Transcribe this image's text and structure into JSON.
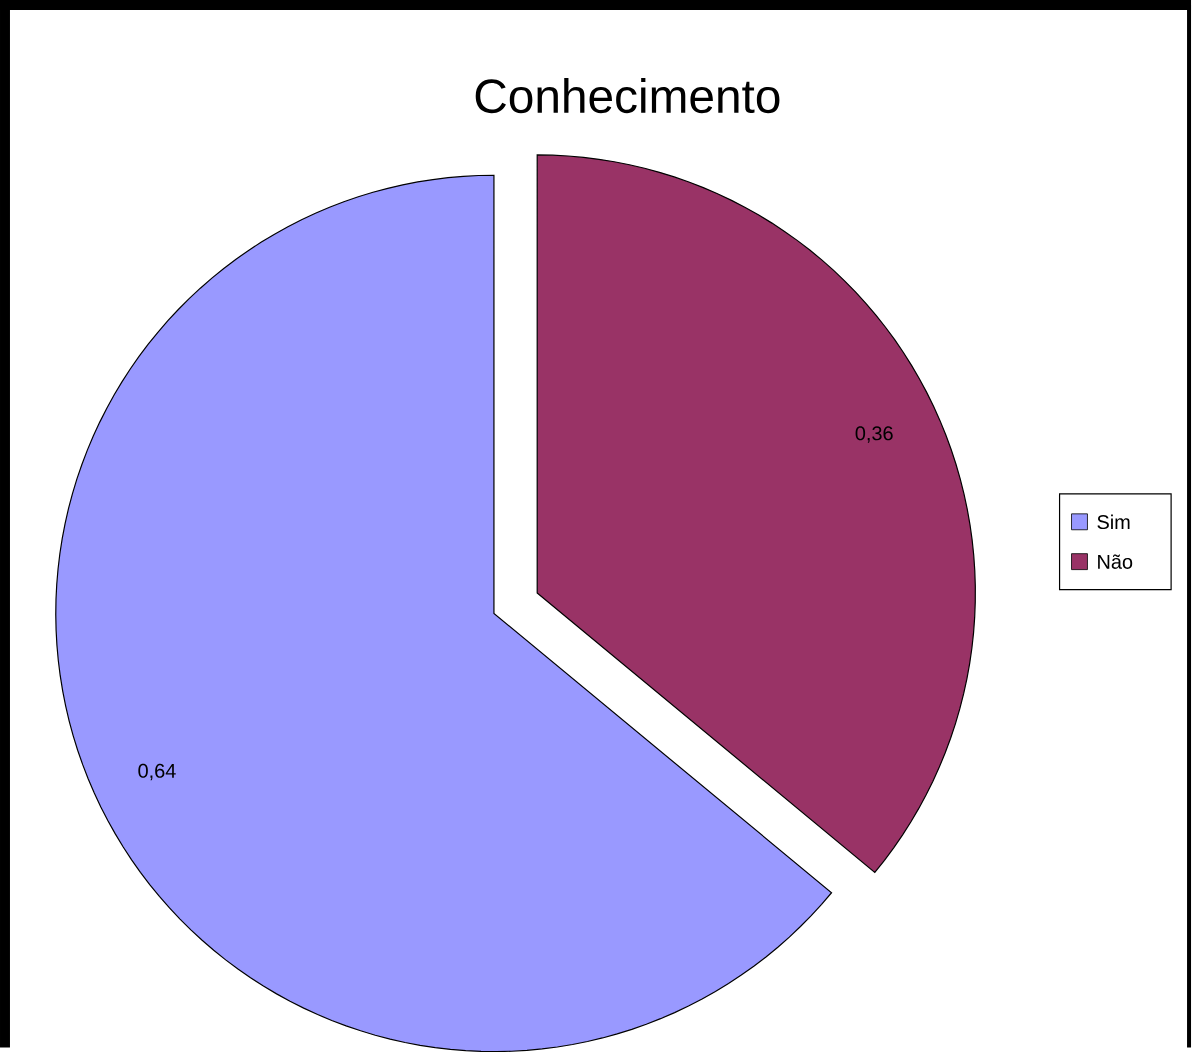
{
  "chart_data": {
    "type": "pie",
    "title": "Conhecimento",
    "categories": [
      "Sim",
      "Não"
    ],
    "values": [
      0.64,
      0.36
    ],
    "colors": [
      "#9999ff",
      "#993366"
    ],
    "value_labels": [
      "0,64",
      "0,36"
    ],
    "legend": "right"
  }
}
